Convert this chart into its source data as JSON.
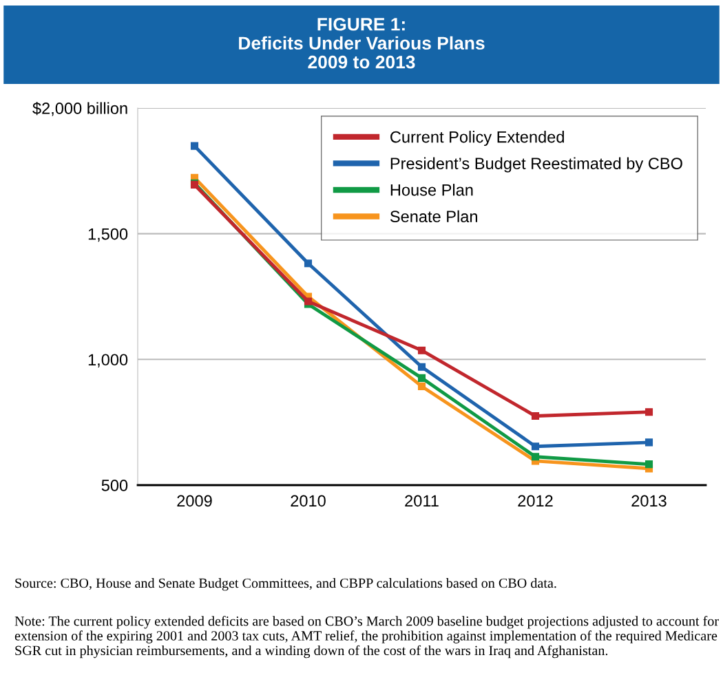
{
  "chart_data": {
    "type": "line",
    "title": "FIGURE 1:\nDeficits Under Various Plans\n2009 to 2013",
    "categories": [
      "2009",
      "2010",
      "2011",
      "2012",
      "2013"
    ],
    "series": [
      {
        "name": "Current Policy Extended",
        "color": "#c1272d",
        "values": [
          1695,
          1231,
          1036,
          775,
          791
        ]
      },
      {
        "name": "President’s Budget Reestimated by CBO",
        "color": "#1f64ad",
        "values": [
          1849,
          1382,
          970,
          654,
          670
        ]
      },
      {
        "name": "House Plan",
        "color": "#109a45",
        "values": [
          1701,
          1220,
          926,
          613,
          583
        ]
      },
      {
        "name": "Senate Plan",
        "color": "#f7941d",
        "values": [
          1723,
          1250,
          893,
          596,
          566
        ]
      }
    ],
    "ylim": [
      500,
      2000
    ],
    "yticks": [
      500,
      {
        "value": 1000,
        "label": "1,000"
      },
      {
        "value": 1500,
        "label": "1,500"
      },
      {
        "value": 2000,
        "label": "$2,000 billion"
      }
    ],
    "grid": "y",
    "legend": "top right",
    "marker": "square",
    "line_style": "solid",
    "annotations": [
      "Source: CBO, House and Senate Budget Committees, and CBPP calculations based on CBO data.",
      "Note: The current policy extended deficits are based on CBO’s March 2009 baseline budget projections adjusted to account for extension of the expiring 2001 and 2003 tax cuts, AMT relief, the prohibition against implementation of the required Medicare SGR cut in physician reimbursements, and a winding down of the cost of the wars in Iraq and Afghanistan."
    ]
  }
}
